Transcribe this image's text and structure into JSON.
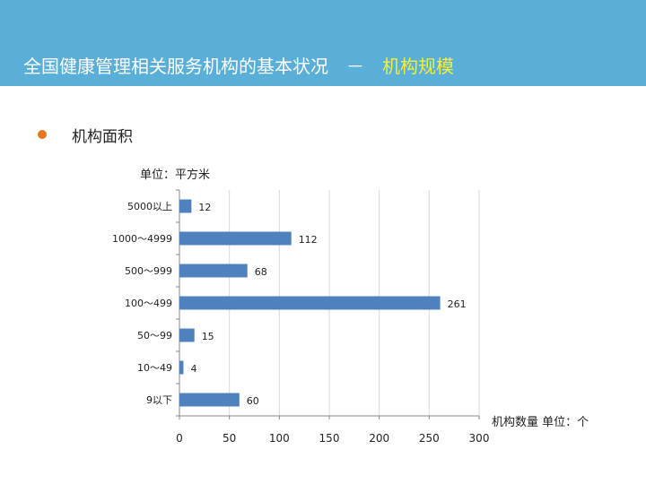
{
  "header": {
    "title_main": "全国健康管理相关服务机构的基本状况　－　",
    "title_highlight": "机构规模",
    "accent_color": "#f4ee3a",
    "background_color": "#5aafd8"
  },
  "section": {
    "bullet_text": "机构面积",
    "bullet_color": "#e87722"
  },
  "chart_data": {
    "type": "bar",
    "orientation": "horizontal",
    "categories": [
      "5000以上",
      "1000～4999",
      "500～999",
      "100～499",
      "50～99",
      "10～49",
      "9以下"
    ],
    "values": [
      12,
      112,
      68,
      261,
      15,
      4,
      60
    ],
    "data_labels": [
      "12",
      "112",
      "68",
      "261",
      "15",
      "4",
      "60"
    ],
    "xlim": [
      0,
      300
    ],
    "xticks": [
      0,
      50,
      100,
      150,
      200,
      250,
      300
    ],
    "xtick_labels": [
      "0",
      "50",
      "100",
      "150",
      "200",
      "250",
      "300"
    ],
    "xlabel": "机构数量 单位：个",
    "unit_label": "单位：平方米",
    "bar_color": "#4f81bd",
    "grid": "vertical"
  }
}
